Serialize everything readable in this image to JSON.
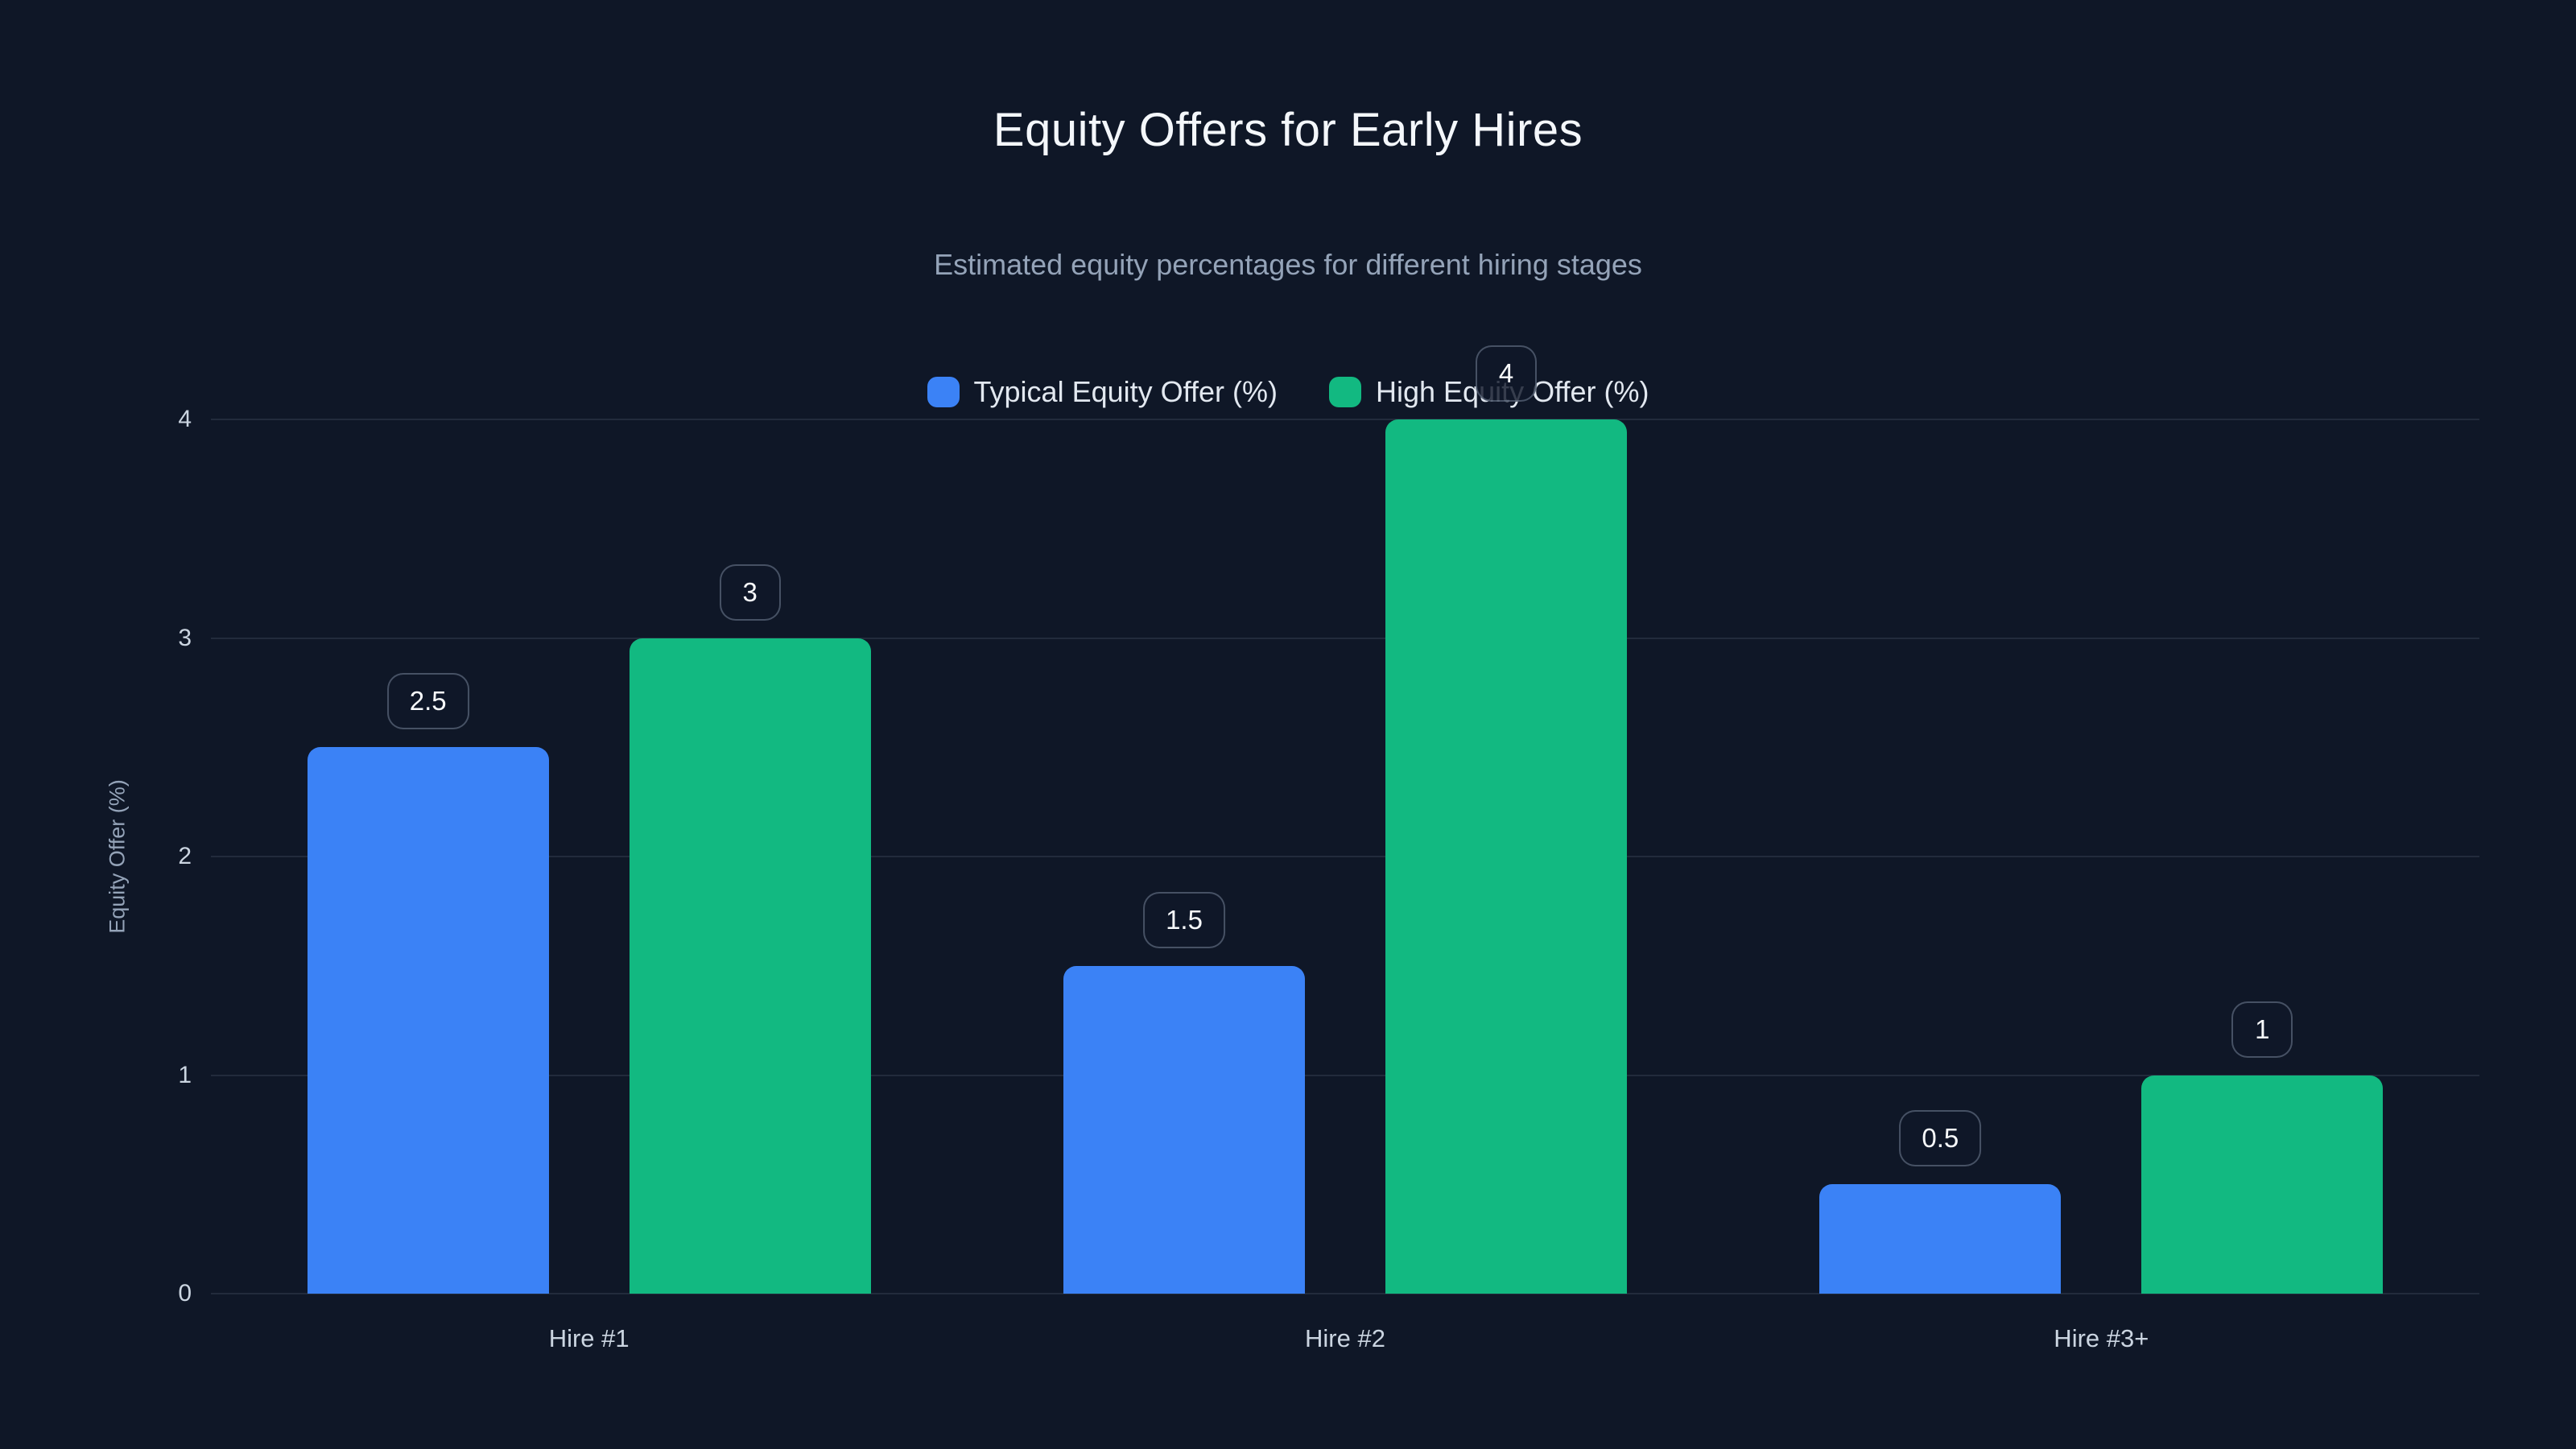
{
  "page": {
    "background_color": "#0f1727"
  },
  "chart_data": {
    "type": "bar",
    "title": "Equity Offers for Early Hires",
    "subtitle": "Estimated equity percentages for different hiring stages",
    "categories": [
      "Hire #1",
      "Hire #2",
      "Hire #3+"
    ],
    "series": [
      {
        "name": "Typical Equity Offer (%)",
        "color": "#3b82f6",
        "values": [
          2.5,
          1.5,
          0.5
        ]
      },
      {
        "name": "High Equity Offer (%)",
        "color": "#12b981",
        "values": [
          3,
          4,
          1
        ]
      }
    ],
    "data_labels": {
      "Hire #1": [
        "2.5",
        "3"
      ],
      "Hire #2": [
        "1.5",
        "4"
      ],
      "Hire #3+": [
        "0.5",
        "1"
      ]
    },
    "xlabel": "",
    "ylabel": "Equity Offer (%)",
    "ylim": [
      0,
      4
    ],
    "yticks": [
      "0",
      "1",
      "2",
      "3",
      "4"
    ],
    "grid": "horizontal",
    "legend_position": "top-center",
    "text_colors": {
      "title": "#f4f7fb",
      "subtitle": "#94a3b8",
      "axis_ticks": "#cbd5e1",
      "axis_title": "#94a3b8",
      "legend": "#e2e8f0",
      "badge_text": "#f8fafc"
    }
  }
}
